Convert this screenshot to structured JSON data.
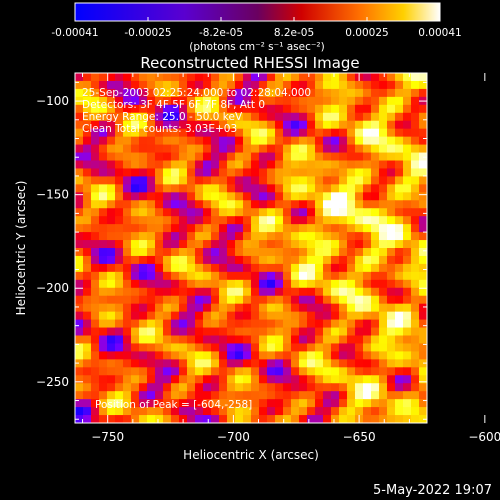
{
  "colorbar": {
    "ticks": [
      "-0.00041",
      "-0.00025",
      "-8.2e-05",
      "8.2e-05",
      "0.00025",
      "0.00041"
    ],
    "unit_label": "(photons cm⁻² s⁻¹ asec⁻²)"
  },
  "chart_data": {
    "type": "heatmap",
    "title": "Reconstructed RHESSI Image",
    "xlabel": "Heliocentric X (arcsec)",
    "ylabel": "Heliocentric Y (arcsec)",
    "xlim": [
      -763,
      -623
    ],
    "ylim": [
      -272,
      -85
    ],
    "x_ticks": [
      -750,
      -700,
      -650,
      -600
    ],
    "y_ticks": [
      -100,
      -150,
      -200,
      -250
    ],
    "x_tick_labels": [
      "−750",
      "−700",
      "−650",
      "−600"
    ],
    "y_tick_labels": [
      "−100",
      "−150",
      "−200",
      "−250"
    ],
    "color_range": [
      -0.00041,
      0.00041
    ],
    "colormap": [
      "#0000ff",
      "#7f00ff",
      "#ff0000",
      "#ff8000",
      "#ffff00",
      "#ffffff"
    ],
    "annotations": [
      "25-Sep-2003 02:25:24.000 to 02:28:04.000",
      "Detectors: 3F 4F 5F 6F 7F 8F, Att 0",
      "Energy Range: 25.0 - 50.0 keV",
      "Clean     Total counts: 3.03E+03"
    ],
    "peak_label": "Position of Peak = [-604,-258]",
    "peak_position": [
      -604,
      -258
    ]
  },
  "footer": {
    "date": "5-May-2022 19:07"
  }
}
